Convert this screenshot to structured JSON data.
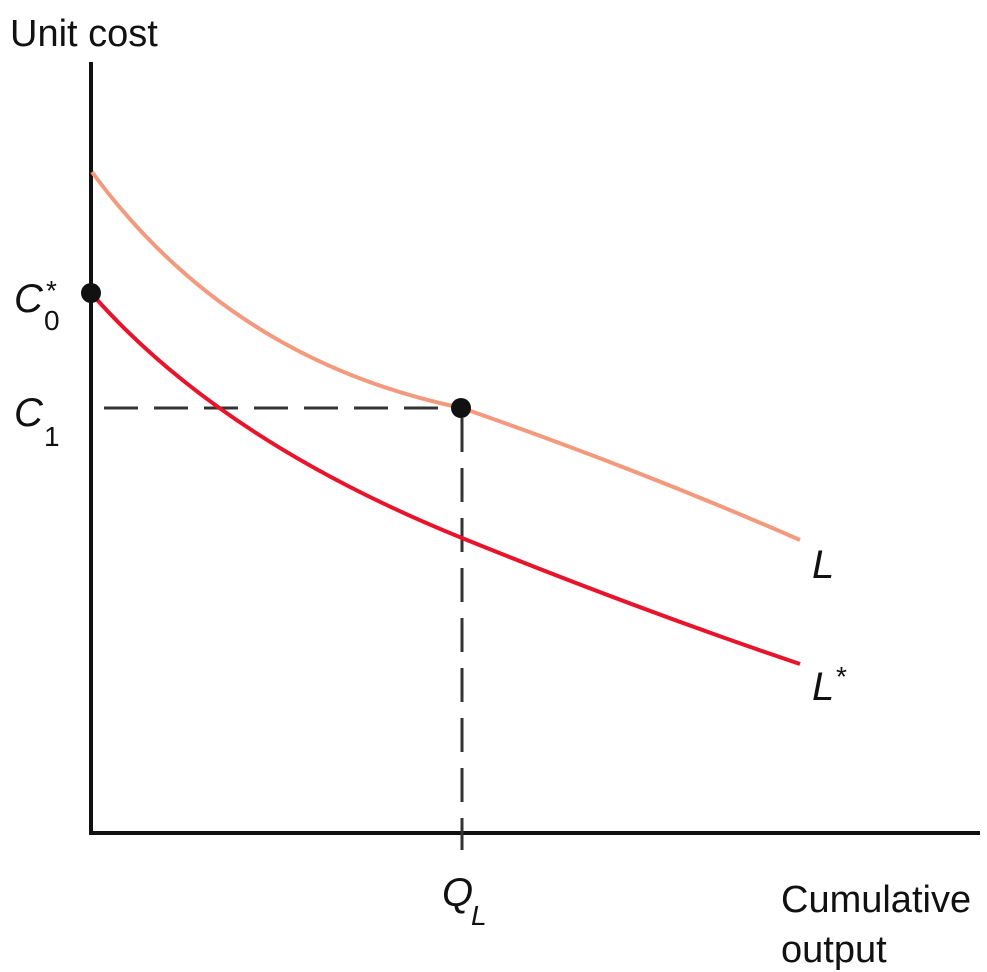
{
  "axes": {
    "y_label": "Unit cost",
    "x_label_line1": "Cumulative",
    "x_label_line2": "output"
  },
  "markers": {
    "c0_star": {
      "letter": "C",
      "subscript": "0",
      "superscript": "*"
    },
    "c1": {
      "letter": "C",
      "subscript": "1"
    },
    "q_l": {
      "letter": "Q",
      "subscript": "L"
    }
  },
  "curves": {
    "l": {
      "label": "L",
      "color": "#f39a7e"
    },
    "l_star": {
      "label": "L",
      "superscript": "*",
      "color": "#e8142c"
    }
  },
  "colors": {
    "axis": "#111111",
    "guide": "#333333",
    "point": "#111111"
  }
}
